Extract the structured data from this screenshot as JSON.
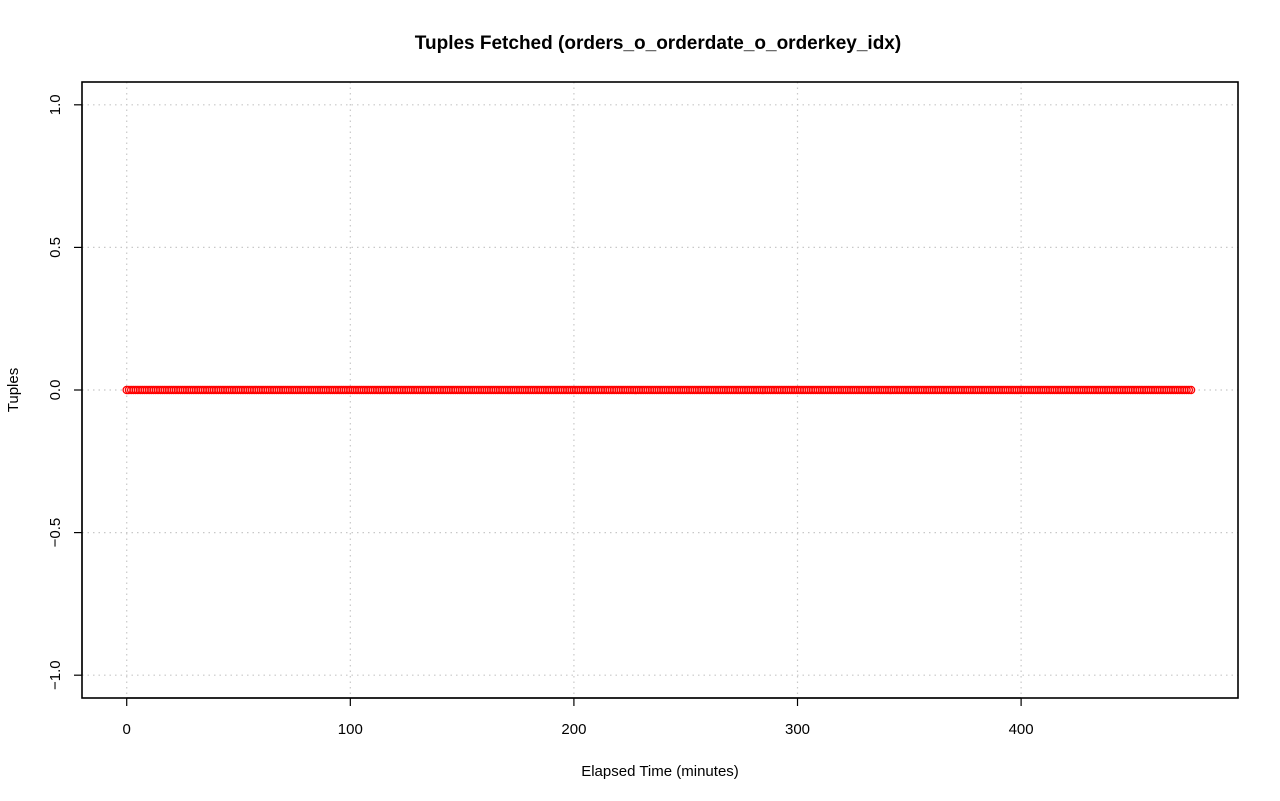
{
  "chart_data": {
    "type": "scatter",
    "title": "Tuples Fetched (orders_o_orderdate_o_orderkey_idx)",
    "xlabel": "Elapsed Time (minutes)",
    "ylabel": "Tuples",
    "xlim": [
      -20,
      497
    ],
    "ylim": [
      -1.08,
      1.08
    ],
    "x_ticks": [
      0,
      100,
      200,
      300,
      400
    ],
    "x_tick_labels": [
      "0",
      "100",
      "200",
      "300",
      "400"
    ],
    "y_ticks": [
      -1.0,
      -0.5,
      0.0,
      0.5,
      1.0
    ],
    "y_tick_labels": [
      "−1.0",
      "−0.5",
      "0.0",
      "0.5",
      "1.0"
    ],
    "grid": true,
    "series": [
      {
        "x_start": 0,
        "x_end": 476,
        "x_step": 1,
        "y_constant": 0,
        "color": "#ff0000"
      }
    ]
  }
}
